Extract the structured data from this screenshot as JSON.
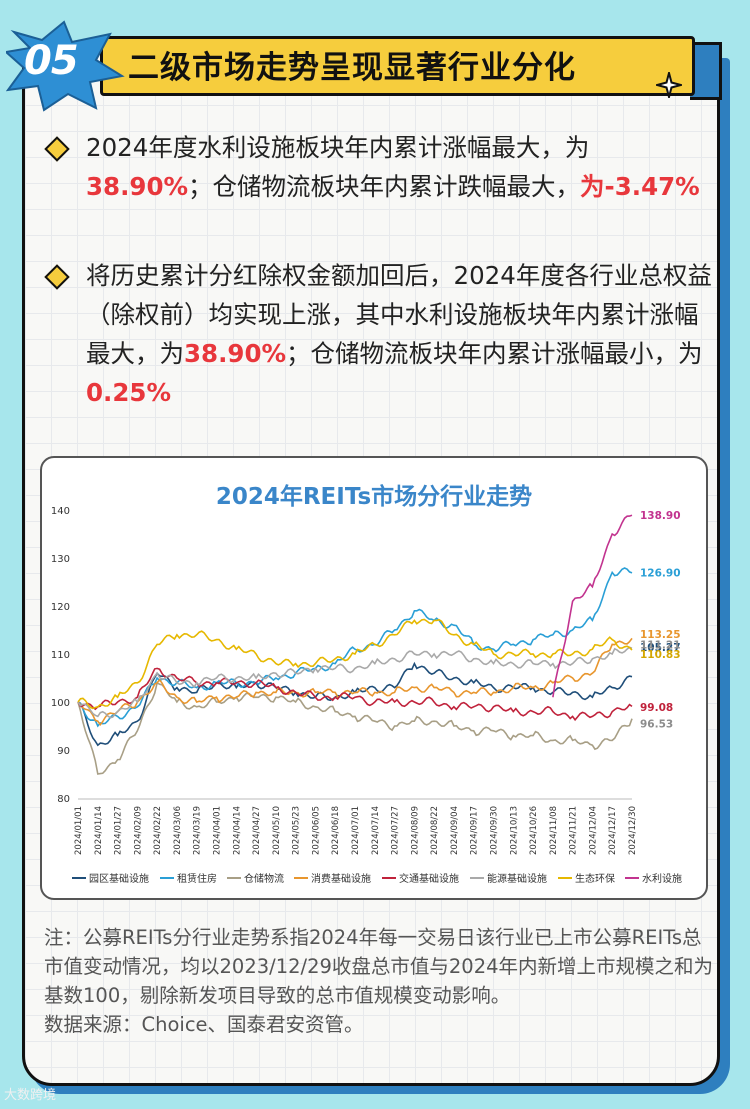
{
  "badge": "05",
  "banner_title": "二级市场走势呈现显著行业分化",
  "bullets": [
    {
      "parts": [
        {
          "text": "2024年度水利设施板块年内累计涨幅最大，为",
          "hl": false
        },
        {
          "text": "38.90%",
          "hl": true
        },
        {
          "text": "；仓储物流板块年内累计跌幅最大，",
          "hl": false
        },
        {
          "text": "为-3.47%",
          "hl": true
        }
      ]
    },
    {
      "parts": [
        {
          "text": "将历史累计分红除权金额加回后，2024年度各行业总权益（除权前）均实现上涨，其中水利设施板块年内累计涨幅最大，为",
          "hl": false
        },
        {
          "text": "38.90%",
          "hl": true
        },
        {
          "text": "；仓储物流板块年内累计涨幅最小，为",
          "hl": false
        },
        {
          "text": "0.25%",
          "hl": true
        }
      ]
    }
  ],
  "chart_data": {
    "type": "line",
    "title": "2024年REITs市场分行业走势",
    "ylim": [
      80,
      140
    ],
    "yticks": [
      80,
      90,
      100,
      110,
      120,
      130,
      140
    ],
    "xlabels": [
      "2024/01/01",
      "2024/01/14",
      "2024/01/27",
      "2024/02/09",
      "2024/02/22",
      "2024/03/06",
      "2024/03/19",
      "2024/04/01",
      "2024/04/14",
      "2024/04/27",
      "2024/05/10",
      "2024/05/23",
      "2024/06/05",
      "2024/06/18",
      "2024/07/01",
      "2024/07/14",
      "2024/07/27",
      "2024/08/09",
      "2024/08/22",
      "2024/09/04",
      "2024/09/17",
      "2024/09/30",
      "2024/10/13",
      "2024/10/26",
      "2024/11/08",
      "2024/11/21",
      "2024/12/04",
      "2024/12/17",
      "2024/12/30"
    ],
    "legend_position": "bottom",
    "series": [
      {
        "name": "园区基础设施",
        "color": "#1f4e79",
        "end_label": "105.27",
        "label_color": "#1f4e79",
        "values": [
          100,
          91,
          93,
          96,
          106,
          103,
          102,
          104,
          103,
          104,
          103,
          102,
          101,
          101,
          102,
          103,
          103,
          108,
          106,
          105,
          104,
          103,
          103,
          103,
          102,
          102,
          101,
          103,
          105.27
        ]
      },
      {
        "name": "租赁住房",
        "color": "#2a9fd6",
        "end_label": "126.90",
        "label_color": "#2a9fd6",
        "values": [
          100,
          95,
          97,
          99,
          105,
          104,
          103,
          104,
          104,
          104,
          105,
          106,
          107,
          108,
          111,
          112,
          115,
          119,
          117,
          116,
          112,
          111,
          112,
          113,
          114,
          115,
          117,
          127,
          126.9
        ]
      },
      {
        "name": "仓储物流",
        "color": "#a89f86",
        "end_label": "96.53",
        "label_color": "#8c8c8c",
        "values": [
          100,
          85,
          88,
          94,
          104,
          100,
          99,
          100,
          101,
          101,
          101,
          100,
          99,
          98,
          97,
          96,
          95,
          96,
          96,
          95,
          94,
          94,
          93,
          93,
          92,
          92,
          91,
          92,
          96.53
        ]
      },
      {
        "name": "消费基础设施",
        "color": "#e8962e",
        "end_label": "113.25",
        "label_color": "#e8962e",
        "values": [
          100,
          96,
          98,
          100,
          104,
          101,
          100,
          101,
          101,
          102,
          102,
          102,
          102,
          102,
          102,
          102,
          102,
          103,
          103,
          102,
          102,
          102,
          103,
          103,
          104,
          105,
          106,
          112,
          113.25
        ]
      },
      {
        "name": "交通基础设施",
        "color": "#c0223b",
        "end_label": "99.08",
        "label_color": "#c0223b",
        "values": [
          100,
          99,
          100,
          101,
          107,
          105,
          104,
          104,
          104,
          104,
          103,
          102,
          101,
          101,
          101,
          100,
          100,
          100,
          100,
          99,
          99,
          99,
          98,
          98,
          98,
          97,
          97,
          98,
          99.08
        ]
      },
      {
        "name": "能源基础设施",
        "color": "#a9a9a9",
        "end_label": "111.21",
        "label_color": "#8c8c8c",
        "values": [
          100,
          97,
          98,
          100,
          106,
          104,
          104,
          105,
          105,
          105,
          106,
          106,
          107,
          107,
          107,
          108,
          109,
          110,
          110,
          110,
          109,
          108,
          108,
          108,
          108,
          108,
          109,
          110,
          111.21
        ]
      },
      {
        "name": "生态环保",
        "color": "#e6b800",
        "end_label": "110.83",
        "label_color": "#d4a600",
        "values": [
          100,
          99,
          101,
          104,
          112,
          114,
          114,
          113,
          111,
          110,
          108,
          108,
          108,
          109,
          110,
          112,
          114,
          117,
          117,
          114,
          112,
          110,
          110,
          110,
          110,
          110,
          111,
          113,
          110.83
        ]
      },
      {
        "name": "水利设施",
        "color": "#c2338f",
        "end_label": "138.90",
        "label_color": "#c2338f",
        "values": [
          null,
          null,
          null,
          null,
          null,
          null,
          null,
          null,
          null,
          null,
          null,
          null,
          null,
          null,
          null,
          null,
          null,
          null,
          null,
          null,
          null,
          null,
          null,
          null,
          101,
          121,
          124,
          135,
          138.9
        ]
      }
    ]
  },
  "note": "注：公募REITs分行业走势系指2024年每一交易日该行业已上市公募REITs总市值变动情况，均以2023/12/29收盘总市值与2024年内新增上市规模之和为基数100，剔除新发项目导致的总市值规模变动影响。",
  "source": "数据来源：Choice、国泰君安资管。",
  "watermark": "大数跨境"
}
